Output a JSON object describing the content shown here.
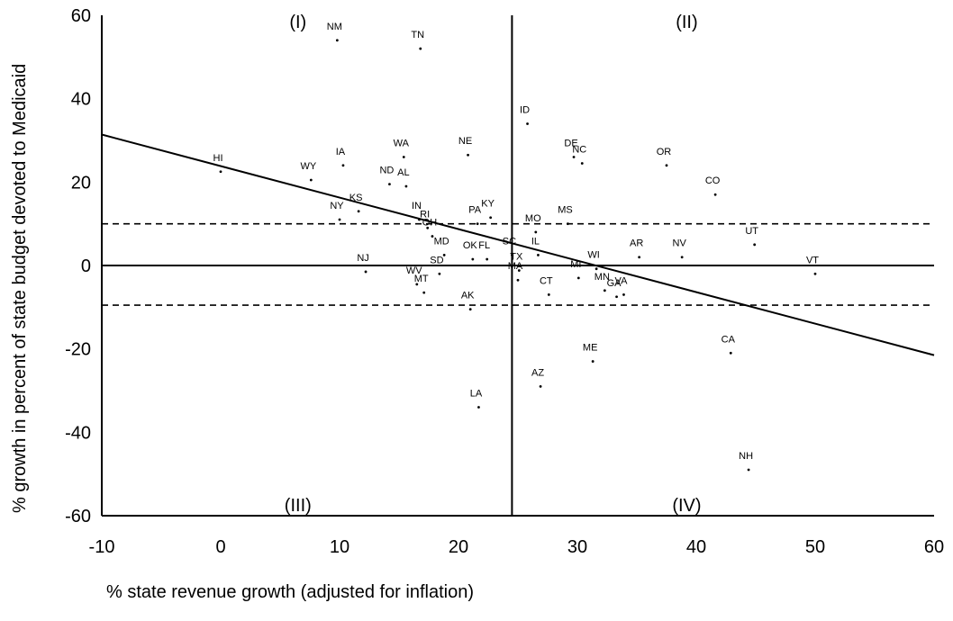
{
  "chart_data": {
    "type": "scatter",
    "xlabel": "% state revenue growth (adjusted for inflation)",
    "ylabel": "% growth in percent of state budget devoted to Medicaid",
    "xlim": [
      -10,
      60
    ],
    "ylim": [
      -60,
      60
    ],
    "xticks": [
      -10,
      0,
      10,
      20,
      30,
      40,
      50,
      60
    ],
    "yticks": [
      60,
      40,
      20,
      0,
      -20,
      -40,
      -60
    ],
    "quadrant_labels": [
      "(I)",
      "(II)",
      "(III)",
      "(IV)"
    ],
    "reference_lines": {
      "vertical_x": 24.5,
      "horizontal_y": 0,
      "band_upper": 10,
      "band_lower": -9.5
    },
    "trend_line": {
      "x": [
        -10,
        60
      ],
      "y": [
        31.4,
        -21.5
      ]
    },
    "points": [
      {
        "label": "NM",
        "x": 9.8,
        "y": 54
      },
      {
        "label": "TN",
        "x": 16.8,
        "y": 52
      },
      {
        "label": "ID",
        "x": 25.8,
        "y": 34
      },
      {
        "label": "HI",
        "x": 0,
        "y": 22.5
      },
      {
        "label": "WY",
        "x": 7.6,
        "y": 20.5
      },
      {
        "label": "IA",
        "x": 10.3,
        "y": 24
      },
      {
        "label": "WA",
        "x": 15.4,
        "y": 26
      },
      {
        "label": "NE",
        "x": 20.8,
        "y": 26.5
      },
      {
        "label": "DE",
        "x": 29.7,
        "y": 26
      },
      {
        "label": "NC",
        "x": 30.4,
        "y": 24.5
      },
      {
        "label": "OR",
        "x": 37.5,
        "y": 24
      },
      {
        "label": "ND",
        "x": 14.2,
        "y": 19.5
      },
      {
        "label": "AL",
        "x": 15.6,
        "y": 19
      },
      {
        "label": "CO",
        "x": 41.6,
        "y": 17
      },
      {
        "label": "KS",
        "x": 11.6,
        "y": 13
      },
      {
        "label": "NY",
        "x": 10,
        "y": 11
      },
      {
        "label": "KY",
        "x": 22.7,
        "y": 11.5
      },
      {
        "label": "PA",
        "x": 21.6,
        "y": 10
      },
      {
        "label": "MS",
        "x": 29.2,
        "y": 10
      },
      {
        "label": "IN",
        "x": 16.7,
        "y": 11
      },
      {
        "label": "RI",
        "x": 17.4,
        "y": 9
      },
      {
        "label": "MO",
        "x": 26.5,
        "y": 8
      },
      {
        "label": "OH",
        "x": 17.8,
        "y": 7
      },
      {
        "label": "UT",
        "x": 44.9,
        "y": 5
      },
      {
        "label": "IL",
        "x": 26.7,
        "y": 2.5
      },
      {
        "label": "MD",
        "x": 18.8,
        "y": 2.5
      },
      {
        "label": "OK",
        "x": 21.2,
        "y": 1.5
      },
      {
        "label": "FL",
        "x": 22.4,
        "y": 1.5
      },
      {
        "label": "SC",
        "x": 24.5,
        "y": 2.5
      },
      {
        "label": "AR",
        "x": 35.2,
        "y": 2
      },
      {
        "label": "NV",
        "x": 38.8,
        "y": 2
      },
      {
        "label": "NJ",
        "x": 12.2,
        "y": -1.5
      },
      {
        "label": "TX",
        "x": 25.1,
        "y": -1.2
      },
      {
        "label": "MA",
        "x": 25,
        "y": -3.5
      },
      {
        "label": "WI",
        "x": 31.6,
        "y": -0.8
      },
      {
        "label": "VT",
        "x": 50,
        "y": -2
      },
      {
        "label": "SD",
        "x": 18.4,
        "y": -2
      },
      {
        "label": "WV",
        "x": 16.5,
        "y": -4.5
      },
      {
        "label": "MT",
        "x": 17.1,
        "y": -6.5
      },
      {
        "label": "MI",
        "x": 30.1,
        "y": -3
      },
      {
        "label": "MN",
        "x": 32.3,
        "y": -6
      },
      {
        "label": "GA",
        "x": 33.3,
        "y": -7.5
      },
      {
        "label": "VA",
        "x": 33.9,
        "y": -7
      },
      {
        "label": "CT",
        "x": 27.6,
        "y": -7
      },
      {
        "label": "AK",
        "x": 21,
        "y": -10.5
      },
      {
        "label": "CA",
        "x": 42.9,
        "y": -21
      },
      {
        "label": "ME",
        "x": 31.3,
        "y": -23
      },
      {
        "label": "AZ",
        "x": 26.9,
        "y": -29
      },
      {
        "label": "LA",
        "x": 21.7,
        "y": -34
      },
      {
        "label": "NH",
        "x": 44.4,
        "y": -49
      }
    ]
  }
}
